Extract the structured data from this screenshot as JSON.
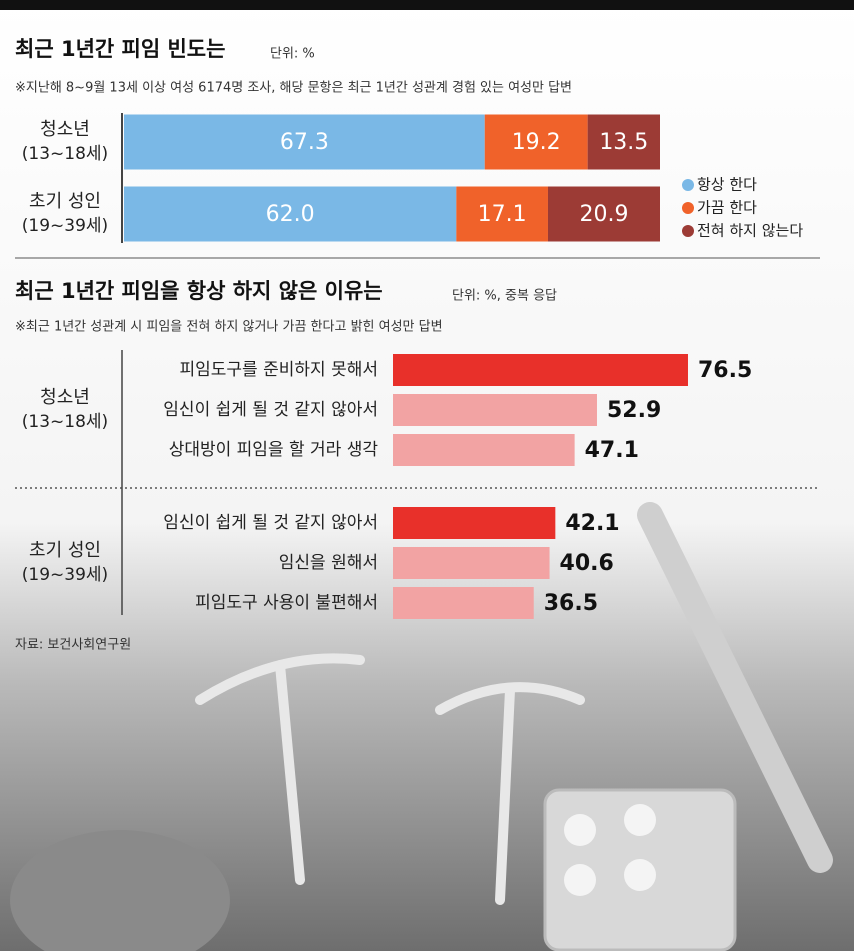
{
  "chart_data": [
    {
      "type": "bar",
      "stacked": true,
      "orientation": "horizontal",
      "title": "최근 1년간 피임 빈도는",
      "unit": "단위: %",
      "note": "※지난해 8~9월 13세 이상 여성 6174명 조사, 해당 문항은 최근 1년간 성관계 경험 있는 여성만 답변",
      "categories": [
        "청소년",
        "초기 성인"
      ],
      "category_ages": [
        "(13~18세)",
        "(19~39세)"
      ],
      "xlim": [
        0,
        100
      ],
      "series": [
        {
          "name": "항상 한다",
          "color": "#7ab8e6",
          "values": [
            67.3,
            62.0
          ],
          "value_labels": [
            "67.3",
            "62.0"
          ]
        },
        {
          "name": "가끔 한다",
          "color": "#f0622a",
          "values": [
            19.2,
            17.1
          ]
        },
        {
          "name": "전혀 하지 않는다",
          "color": "#9c3b35",
          "values": [
            13.5,
            20.9
          ]
        }
      ]
    },
    {
      "type": "bar",
      "stacked": false,
      "orientation": "horizontal",
      "title": "최근 1년간 피임을 항상 하지 않은 이유는",
      "unit": "단위: %, 중복 응답",
      "note": "※최근 1년간 성관계 시 피임을 전혀 하지 않거나 가끔 한다고 밝힌 여성만 답변",
      "xlim": [
        0,
        100
      ],
      "groups": [
        {
          "name": "청소년",
          "ages": "(13~18세)",
          "categories": [
            "피임도구를 준비하지 못해서",
            "임신이 쉽게 될 것 같지 않아서",
            "상대방이 피임을 할 거라 생각"
          ],
          "values": [
            76.5,
            52.9,
            47.1
          ],
          "colors": [
            "#e8302a",
            "#f2a3a3",
            "#f2a3a3"
          ]
        },
        {
          "name": "초기 성인",
          "ages": "(19~39세)",
          "categories": [
            "임신이 쉽게 될 것 같지 않아서",
            "임신을 원해서",
            "피임도구 사용이 불편해서"
          ],
          "values": [
            42.1,
            40.6,
            36.5
          ],
          "colors": [
            "#e8302a",
            "#f2a3a3",
            "#f2a3a3"
          ]
        }
      ]
    }
  ],
  "source": "자료: 보건사회연구원"
}
